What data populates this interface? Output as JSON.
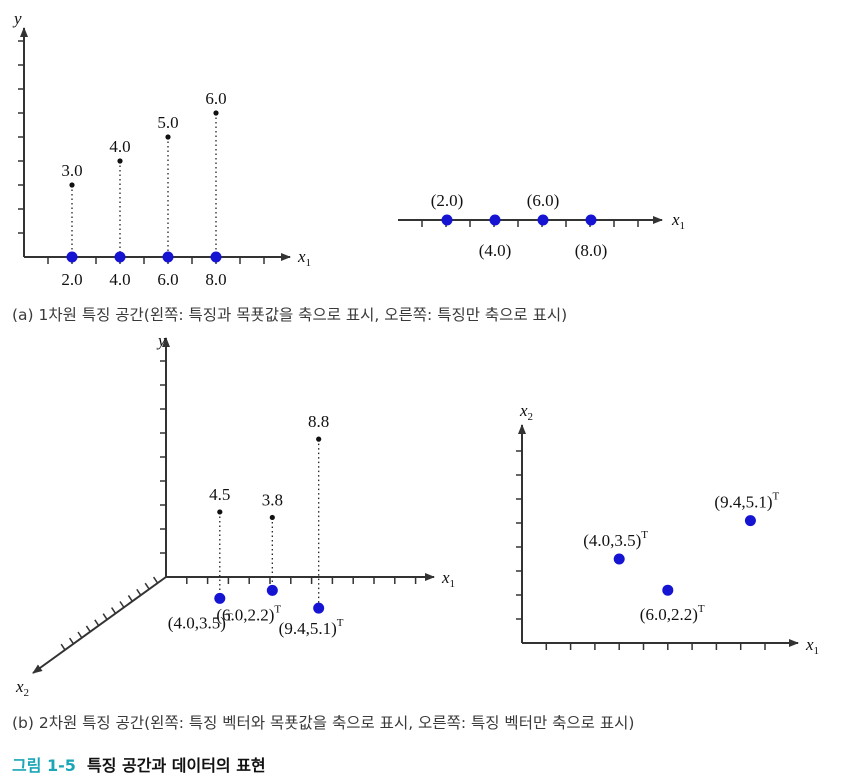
{
  "panel_a": {
    "left": {
      "y_axis_label": "y",
      "x_axis_label": "x",
      "x_axis_sub": "1",
      "points": [
        {
          "x": 2.0,
          "y": 3.0,
          "x_label": "2.0",
          "y_label": "3.0"
        },
        {
          "x": 4.0,
          "y": 4.0,
          "x_label": "4.0",
          "y_label": "4.0"
        },
        {
          "x": 6.0,
          "y": 5.0,
          "x_label": "6.0",
          "y_label": "5.0"
        },
        {
          "x": 8.0,
          "y": 6.0,
          "x_label": "8.0",
          "y_label": "6.0"
        }
      ]
    },
    "right": {
      "x_axis_label": "x",
      "x_axis_sub": "1",
      "points": [
        {
          "x": 2.0,
          "label": "(2.0)",
          "label_pos": "above"
        },
        {
          "x": 4.0,
          "label": "(4.0)",
          "label_pos": "below"
        },
        {
          "x": 6.0,
          "label": "(6.0)",
          "label_pos": "above"
        },
        {
          "x": 8.0,
          "label": "(8.0)",
          "label_pos": "below"
        }
      ]
    },
    "caption": "(a) 1차원 특징 공간(왼쪽: 특징과 목푯값을 축으로 표시, 오른쪽: 특징만 축으로 표시)"
  },
  "panel_b": {
    "left": {
      "y_axis_label": "y",
      "x1_axis_label": "x",
      "x1_axis_sub": "1",
      "x2_axis_label": "x",
      "x2_axis_sub": "2",
      "points": [
        {
          "x1": 4.0,
          "x2": 3.5,
          "y": 4.5,
          "vector_label": "(4.0,3.5)",
          "sup": "T",
          "y_label": "4.5"
        },
        {
          "x1": 6.0,
          "x2": 2.2,
          "y": 3.8,
          "vector_label": "(6.0,2.2)",
          "sup": "T",
          "y_label": "3.8"
        },
        {
          "x1": 9.4,
          "x2": 5.1,
          "y": 8.8,
          "vector_label": "(9.4,5.1)",
          "sup": "T",
          "y_label": "8.8"
        }
      ]
    },
    "right": {
      "x1_axis_label": "x",
      "x1_axis_sub": "1",
      "x2_axis_label": "x",
      "x2_axis_sub": "2",
      "points": [
        {
          "x1": 4.0,
          "x2": 3.5,
          "label": "(4.0,3.5)",
          "sup": "T"
        },
        {
          "x1": 6.0,
          "x2": 2.2,
          "label": "(6.0,2.2)",
          "sup": "T"
        },
        {
          "x1": 9.4,
          "x2": 5.1,
          "label": "(9.4,5.1)",
          "sup": "T"
        }
      ]
    },
    "caption": "(b) 2차원 특징 공간(왼쪽: 특징 벡터와 목푯값을 축으로 표시, 오른쪽: 특징 벡터만 축으로 표시)"
  },
  "figure": {
    "label": "그림 1-5",
    "title": "특징 공간과 데이터의 표현"
  },
  "colors": {
    "point": "#1414d2",
    "axis": "#333333",
    "figure_label": "#1aa6b7"
  }
}
